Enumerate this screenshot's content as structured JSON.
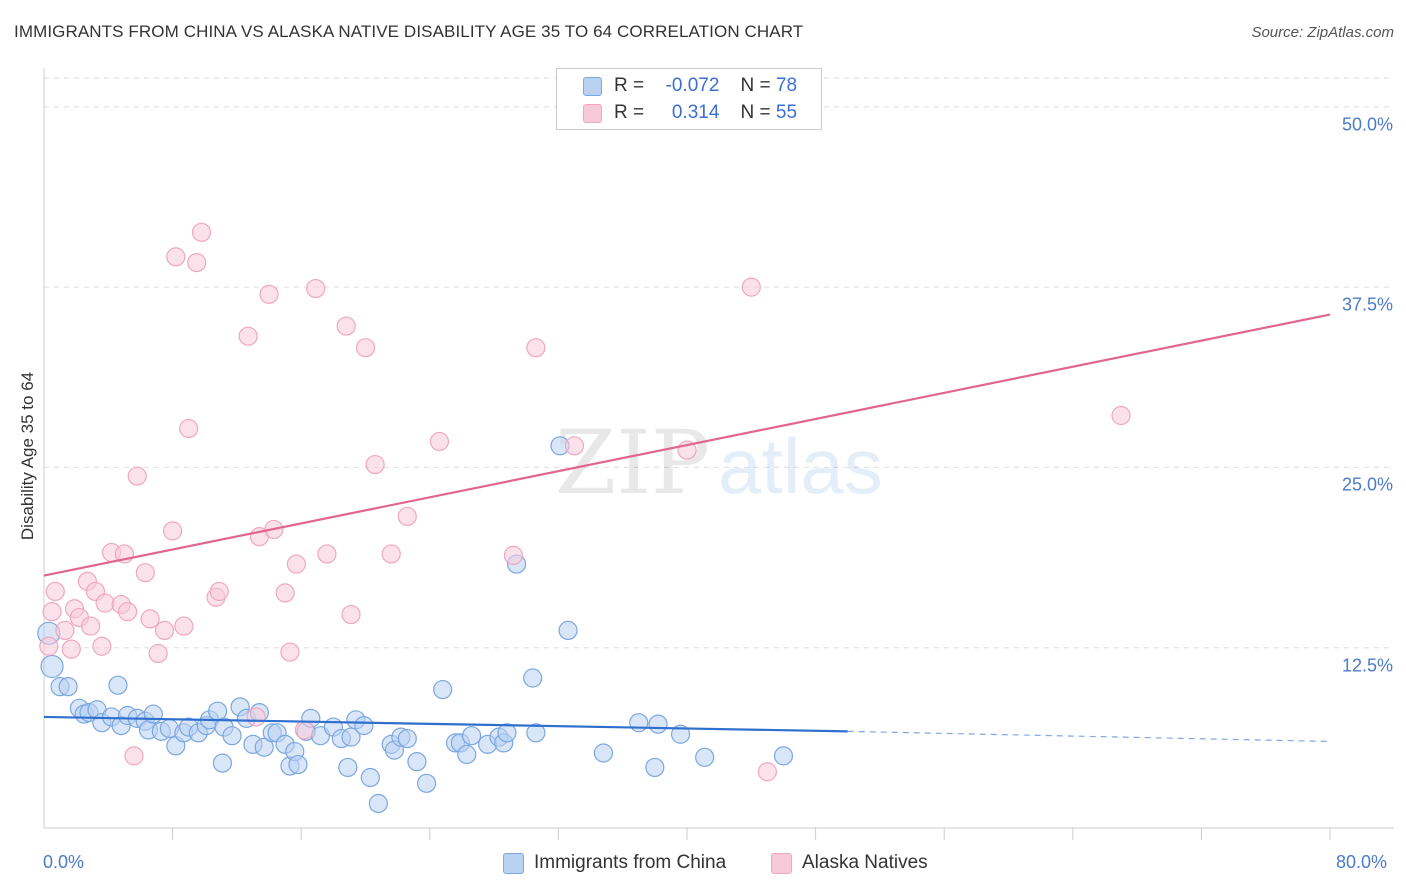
{
  "chart_data": {
    "type": "scatter",
    "title": "IMMIGRANTS FROM CHINA VS ALASKA NATIVE DISABILITY AGE 35 TO 64 CORRELATION CHART",
    "source": "Source: ZipAtlas.com",
    "ylabel": "Disability Age 35 to 64",
    "xlabel": "",
    "xlim": [
      0,
      80
    ],
    "ylim": [
      0,
      52
    ],
    "y_ticks": [
      {
        "value": 12.5,
        "label": "12.5%"
      },
      {
        "value": 25.0,
        "label": "25.0%"
      },
      {
        "value": 37.5,
        "label": "37.5%"
      },
      {
        "value": 50.0,
        "label": "50.0%"
      }
    ],
    "x_tick_labels": {
      "min": "0.0%",
      "max": "80.0%"
    },
    "grid": true,
    "legend": {
      "placement": "top-center",
      "rows": [
        {
          "r_label": "R =",
          "r_value": "-0.072",
          "n_label": "N =",
          "n_value": "78"
        },
        {
          "r_label": "R =",
          "r_value": "0.314",
          "n_label": "N =",
          "n_value": "55"
        }
      ]
    },
    "series": [
      {
        "name": "Immigrants from China",
        "color": "#7ba7e0",
        "fill": "#b9d2f3",
        "trend_color": "#2f6fce",
        "trend": {
          "x0": 0,
          "y0": 7.7,
          "x1": 50,
          "y1": 6.7,
          "dash_to_x": 80,
          "dash_to_y": 6.0
        },
        "points": [
          [
            0.3,
            13.5
          ],
          [
            0.5,
            11.2
          ],
          [
            1.0,
            9.8
          ],
          [
            1.5,
            9.8
          ],
          [
            2.2,
            8.3
          ],
          [
            2.5,
            7.9
          ],
          [
            2.8,
            8.0
          ],
          [
            3.3,
            8.2
          ],
          [
            3.6,
            7.3
          ],
          [
            4.2,
            7.7
          ],
          [
            4.8,
            7.1
          ],
          [
            4.6,
            9.9
          ],
          [
            5.2,
            7.8
          ],
          [
            5.8,
            7.6
          ],
          [
            6.3,
            7.4
          ],
          [
            6.5,
            6.8
          ],
          [
            6.8,
            7.9
          ],
          [
            7.3,
            6.7
          ],
          [
            7.8,
            6.9
          ],
          [
            8.2,
            5.7
          ],
          [
            8.7,
            6.6
          ],
          [
            9.0,
            7.0
          ],
          [
            9.6,
            6.6
          ],
          [
            10.1,
            7.1
          ],
          [
            10.3,
            7.5
          ],
          [
            10.8,
            8.1
          ],
          [
            11.2,
            7.0
          ],
          [
            11.1,
            4.5
          ],
          [
            11.7,
            6.4
          ],
          [
            12.2,
            8.4
          ],
          [
            12.6,
            7.6
          ],
          [
            13.0,
            5.8
          ],
          [
            13.4,
            8.0
          ],
          [
            13.7,
            5.6
          ],
          [
            14.2,
            6.6
          ],
          [
            14.5,
            6.6
          ],
          [
            15.0,
            5.8
          ],
          [
            15.3,
            4.3
          ],
          [
            15.6,
            5.3
          ],
          [
            15.8,
            4.4
          ],
          [
            16.3,
            6.7
          ],
          [
            16.6,
            7.6
          ],
          [
            17.2,
            6.4
          ],
          [
            18.0,
            7.0
          ],
          [
            18.5,
            6.2
          ],
          [
            18.9,
            4.2
          ],
          [
            19.1,
            6.3
          ],
          [
            19.4,
            7.5
          ],
          [
            19.9,
            7.1
          ],
          [
            20.3,
            3.5
          ],
          [
            20.8,
            1.7
          ],
          [
            21.6,
            5.8
          ],
          [
            21.8,
            5.4
          ],
          [
            22.2,
            6.3
          ],
          [
            22.6,
            6.2
          ],
          [
            23.2,
            4.6
          ],
          [
            23.8,
            3.1
          ],
          [
            24.8,
            9.6
          ],
          [
            25.6,
            5.9
          ],
          [
            25.9,
            5.9
          ],
          [
            26.3,
            5.1
          ],
          [
            26.6,
            6.4
          ],
          [
            27.6,
            5.8
          ],
          [
            28.3,
            6.3
          ],
          [
            28.6,
            5.9
          ],
          [
            28.8,
            6.6
          ],
          [
            29.4,
            18.3
          ],
          [
            30.4,
            10.4
          ],
          [
            30.6,
            6.6
          ],
          [
            32.1,
            26.5
          ],
          [
            32.6,
            13.7
          ],
          [
            34.8,
            5.2
          ],
          [
            37.0,
            7.3
          ],
          [
            38.0,
            4.2
          ],
          [
            38.2,
            7.2
          ],
          [
            39.6,
            6.5
          ],
          [
            41.1,
            4.9
          ],
          [
            46.0,
            5.0
          ]
        ]
      },
      {
        "name": "Alaska Natives",
        "color": "#f0a7bf",
        "fill": "#f8cad9",
        "trend_color": "#e0658f",
        "trend": {
          "x0": 0,
          "y0": 17.5,
          "x1": 80,
          "y1": 35.6
        },
        "points": [
          [
            0.3,
            12.6
          ],
          [
            0.5,
            15.0
          ],
          [
            0.7,
            16.4
          ],
          [
            1.3,
            13.7
          ],
          [
            1.7,
            12.4
          ],
          [
            1.9,
            15.2
          ],
          [
            2.2,
            14.6
          ],
          [
            2.7,
            17.1
          ],
          [
            2.9,
            14.0
          ],
          [
            3.2,
            16.4
          ],
          [
            3.6,
            12.6
          ],
          [
            3.8,
            15.6
          ],
          [
            4.2,
            19.1
          ],
          [
            4.8,
            15.5
          ],
          [
            5.0,
            19.0
          ],
          [
            5.2,
            15.0
          ],
          [
            5.6,
            5.0
          ],
          [
            5.8,
            24.4
          ],
          [
            6.3,
            17.7
          ],
          [
            6.6,
            14.5
          ],
          [
            7.1,
            12.1
          ],
          [
            7.5,
            13.7
          ],
          [
            8.0,
            20.6
          ],
          [
            8.2,
            39.6
          ],
          [
            8.7,
            14.0
          ],
          [
            9.0,
            27.7
          ],
          [
            9.5,
            39.2
          ],
          [
            9.8,
            41.3
          ],
          [
            10.7,
            16.0
          ],
          [
            10.9,
            16.4
          ],
          [
            12.7,
            34.1
          ],
          [
            13.2,
            7.7
          ],
          [
            13.4,
            20.2
          ],
          [
            14.0,
            37.0
          ],
          [
            14.3,
            20.7
          ],
          [
            15.0,
            16.3
          ],
          [
            15.3,
            12.2
          ],
          [
            15.7,
            18.3
          ],
          [
            16.2,
            6.8
          ],
          [
            16.9,
            37.4
          ],
          [
            17.6,
            19.0
          ],
          [
            18.8,
            34.8
          ],
          [
            19.1,
            14.8
          ],
          [
            20.0,
            33.3
          ],
          [
            20.6,
            25.2
          ],
          [
            21.6,
            19.0
          ],
          [
            22.6,
            21.6
          ],
          [
            24.6,
            26.8
          ],
          [
            29.2,
            18.9
          ],
          [
            30.6,
            33.3
          ],
          [
            33.0,
            26.5
          ],
          [
            40.0,
            26.2
          ],
          [
            44.0,
            37.5
          ],
          [
            45.0,
            3.9
          ],
          [
            67.0,
            28.6
          ]
        ]
      }
    ]
  }
}
